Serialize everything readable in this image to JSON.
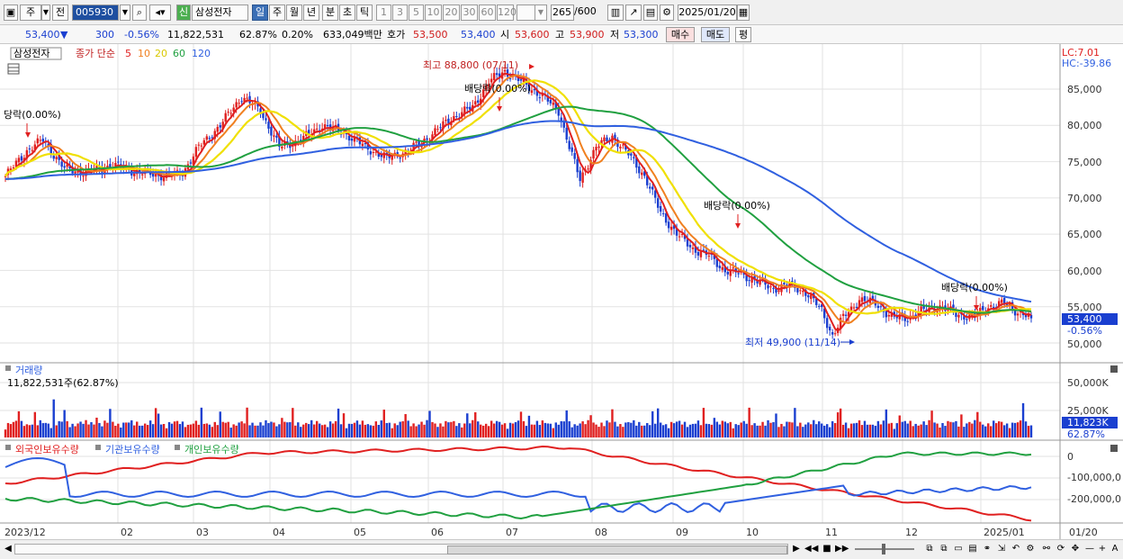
{
  "toolbar": {
    "type_label": "주",
    "prev_label": "전",
    "code": "005930",
    "name": "삼성전자",
    "sin_label": "신",
    "periods": [
      "일",
      "주",
      "월",
      "년",
      "분",
      "초",
      "틱"
    ],
    "intervals": [
      "1",
      "3",
      "5",
      "10",
      "20",
      "30",
      "60",
      "120"
    ],
    "count": "265",
    "count_max": "/600",
    "date": "2025/01/20"
  },
  "quote": {
    "price": "53,400",
    "change": "300",
    "change_pct": "-0.56%",
    "volume": "11,822,531",
    "vol_ratio": "62.87%",
    "turnover_pct": "0.20%",
    "amount": "633,049백만",
    "hoga_label": "호가",
    "ask": "53,500",
    "bid": "53,400",
    "open_label": "시",
    "open": "53,600",
    "high_label": "고",
    "high": "53,900",
    "low_label": "저",
    "low": "53,300",
    "buy_label": "매수",
    "sell_label": "매도",
    "eval_label": "평"
  },
  "price_panel": {
    "stock_tag": "삼성전자",
    "legend_prefix": "종가 단순",
    "ma_legend": [
      {
        "label": "5",
        "color": "#e02020"
      },
      {
        "label": "10",
        "color": "#f08020"
      },
      {
        "label": "20",
        "color": "#e8d800"
      },
      {
        "label": "60",
        "color": "#20a040"
      },
      {
        "label": "120",
        "color": "#3060e0"
      }
    ],
    "lc": "LC:7.01",
    "hc": "HC:-39.86",
    "yticks": [
      "85,000",
      "80,000",
      "75,000",
      "70,000",
      "65,000",
      "60,000",
      "55,000",
      "50,000"
    ],
    "last_price": "53,400",
    "last_change": "-0.56%",
    "annotations": {
      "div1": "당락(0.00%)",
      "div2": "배당락(0.00%)",
      "div3": "배당락(0.00%)",
      "div4": "배당락(0.00%)",
      "high": "최고 88,800 (07/11)",
      "low": "최저 49,900 (11/14)"
    }
  },
  "volume_panel": {
    "title": "거래량",
    "value": "11,822,531주(62.87%)",
    "yticks": [
      "50,000K",
      "25,000K"
    ],
    "last": "11,823K",
    "last_pct": "62.87%"
  },
  "holding_panel": {
    "legend": [
      {
        "label": "외국인보유수량",
        "color": "#e02020"
      },
      {
        "label": "기관보유수량",
        "color": "#3060e0"
      },
      {
        "label": "개인보유수량",
        "color": "#20a040"
      }
    ],
    "yticks": [
      "0",
      "-100,000,0",
      "-200,000,0"
    ]
  },
  "xaxis": {
    "labels": [
      "2023/12",
      "02",
      "03",
      "04",
      "05",
      "06",
      "07",
      "08",
      "09",
      "10",
      "11",
      "12",
      "2025/01"
    ],
    "end": "01/20"
  },
  "chart_data": {
    "type": "line",
    "ylim": [
      48000,
      91000
    ],
    "close_anchors": [
      [
        0,
        73000
      ],
      [
        8,
        76500
      ],
      [
        14,
        78000
      ],
      [
        22,
        74000
      ],
      [
        30,
        73500
      ],
      [
        40,
        74500
      ],
      [
        50,
        73500
      ],
      [
        60,
        73000
      ],
      [
        66,
        73500
      ],
      [
        72,
        77000
      ],
      [
        80,
        80000
      ],
      [
        88,
        84000
      ],
      [
        95,
        82000
      ],
      [
        102,
        77000
      ],
      [
        110,
        78000
      ],
      [
        118,
        80000
      ],
      [
        126,
        79000
      ],
      [
        134,
        77000
      ],
      [
        142,
        75500
      ],
      [
        150,
        76500
      ],
      [
        158,
        78500
      ],
      [
        166,
        81000
      ],
      [
        174,
        82500
      ],
      [
        180,
        86000
      ],
      [
        186,
        87500
      ],
      [
        192,
        86000
      ],
      [
        200,
        84000
      ],
      [
        206,
        82000
      ],
      [
        210,
        77000
      ],
      [
        214,
        72500
      ],
      [
        220,
        77000
      ],
      [
        226,
        78500
      ],
      [
        232,
        76000
      ],
      [
        238,
        73000
      ],
      [
        244,
        68000
      ],
      [
        250,
        65000
      ],
      [
        256,
        63000
      ],
      [
        262,
        62000
      ],
      [
        268,
        60000
      ],
      [
        274,
        59500
      ],
      [
        280,
        58500
      ],
      [
        286,
        57500
      ],
      [
        292,
        58000
      ],
      [
        298,
        57000
      ],
      [
        304,
        54500
      ],
      [
        308,
        51000
      ],
      [
        312,
        53500
      ],
      [
        318,
        56000
      ],
      [
        324,
        55500
      ],
      [
        330,
        53500
      ],
      [
        336,
        53500
      ],
      [
        342,
        54500
      ],
      [
        348,
        55000
      ],
      [
        354,
        54000
      ],
      [
        360,
        53500
      ],
      [
        366,
        55000
      ],
      [
        372,
        55500
      ],
      [
        376,
        54500
      ],
      [
        382,
        53400
      ]
    ],
    "n_days": 383
  }
}
